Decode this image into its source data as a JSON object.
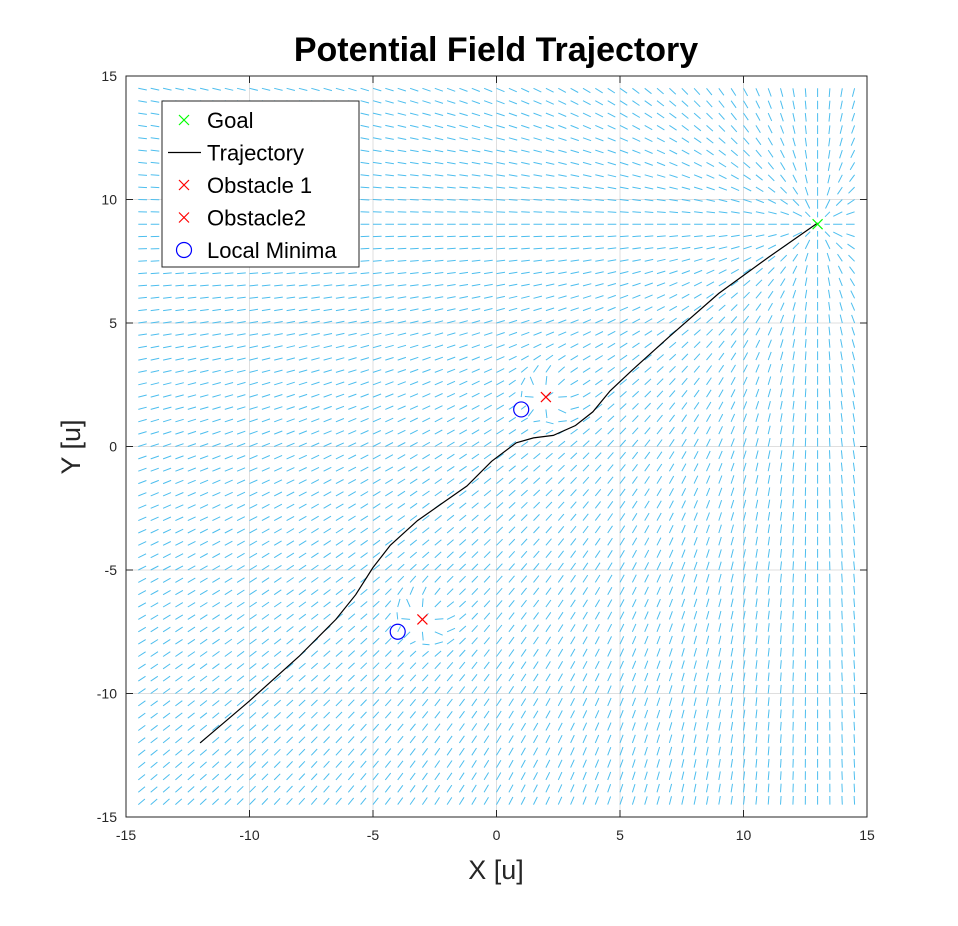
{
  "chart_data": {
    "type": "line",
    "title": "Potential Field Trajectory",
    "xlabel": "X [u]",
    "ylabel": "Y [u]",
    "xlim": [
      -15,
      15
    ],
    "ylim": [
      -15,
      15
    ],
    "xticks": [
      -15,
      -10,
      -5,
      0,
      5,
      10,
      15
    ],
    "yticks": [
      -15,
      -10,
      -5,
      0,
      5,
      10,
      15
    ],
    "xtick_labels": [
      "-15",
      "-10",
      "-5",
      "0",
      "5",
      "10",
      "15"
    ],
    "ytick_labels": [
      "-15",
      "-10",
      "-5",
      "0",
      "5",
      "10",
      "15"
    ],
    "grid": true,
    "legend_position": "top-left",
    "goal": {
      "name": "Goal",
      "x": 13,
      "y": 9,
      "color": "#00ff00"
    },
    "obstacles": [
      {
        "name": "Obstacle 1",
        "x": -3,
        "y": -7,
        "color": "#ff0000"
      },
      {
        "name": "Obstacle2",
        "x": 2,
        "y": 2,
        "color": "#ff0000"
      }
    ],
    "local_minima": {
      "name": "Local Minima",
      "color": "#0000ff",
      "points": [
        {
          "x": -4,
          "y": -7.5
        },
        {
          "x": 1,
          "y": 1.5
        }
      ]
    },
    "trajectory": {
      "name": "Trajectory",
      "color": "#000000",
      "x": [
        -12,
        -10,
        -8,
        -6.5,
        -5.7,
        -5,
        -4.3,
        -3.2,
        -2.2,
        -1.2,
        -0.2,
        0.8,
        1.5,
        2.3,
        3.2,
        3.9,
        4.6,
        5.5,
        7,
        9,
        11,
        13
      ],
      "y": [
        -12,
        -10.3,
        -8.5,
        -7,
        -6,
        -4.9,
        -4,
        -3,
        -2.3,
        -1.6,
        -0.6,
        0.15,
        0.35,
        0.45,
        0.85,
        1.4,
        2.25,
        3.1,
        4.45,
        6.2,
        7.65,
        9.05
      ]
    },
    "vector_field": {
      "color": "#4dbeee",
      "x_range": [
        -14.5,
        14.5
      ],
      "y_range": [
        -14.5,
        14.5
      ],
      "spacing": 0.5
    }
  },
  "legend": [
    {
      "label": "Goal",
      "marker": "x",
      "color": "#00ff00"
    },
    {
      "label": "Trajectory",
      "marker": "line",
      "color": "#000000"
    },
    {
      "label": "Obstacle 1",
      "marker": "x",
      "color": "#ff0000"
    },
    {
      "label": "Obstacle2",
      "marker": "x",
      "color": "#ff0000"
    },
    {
      "label": "Local Minima",
      "marker": "o",
      "color": "#0000ff"
    }
  ]
}
